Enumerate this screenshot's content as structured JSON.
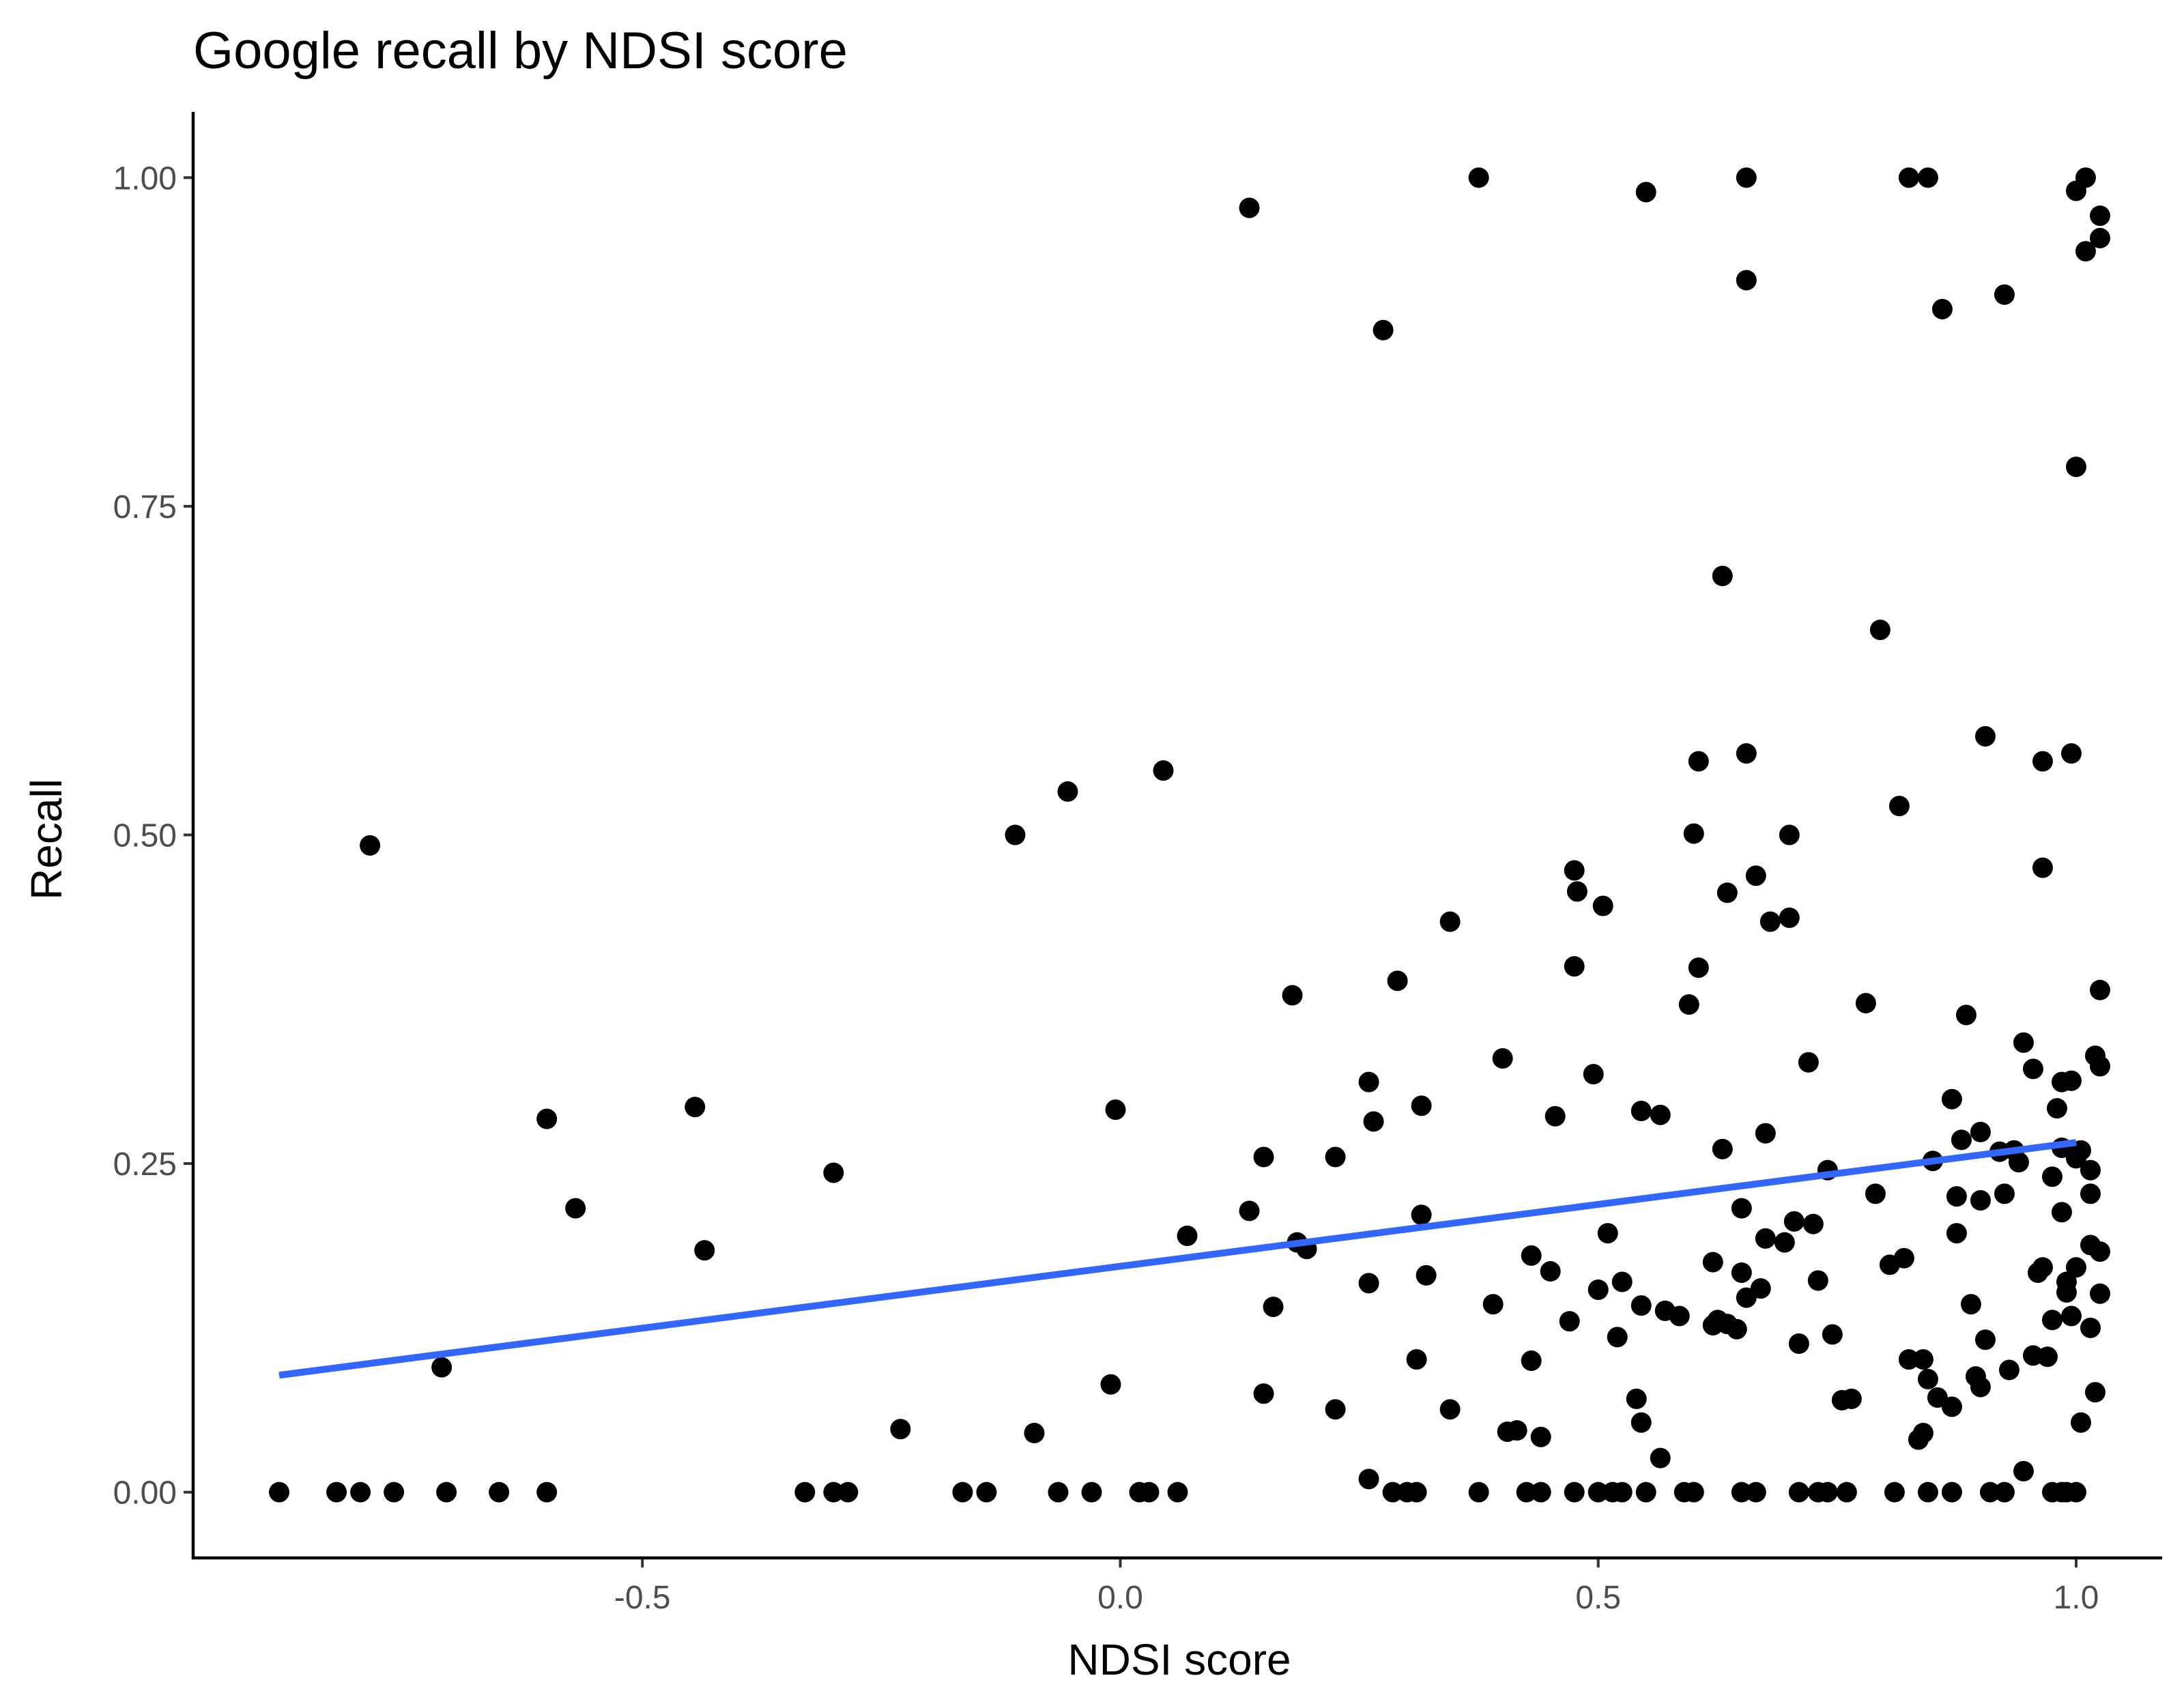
{
  "chart_data": {
    "type": "scatter",
    "title": "Google recall by NDSI score",
    "xlabel": "NDSI score",
    "ylabel": "Recall",
    "xlim": [
      -0.97,
      1.09
    ],
    "ylim": [
      -0.05,
      1.05
    ],
    "xticks": [
      {
        "value": -0.5,
        "label": "-0.5"
      },
      {
        "value": 0.0,
        "label": "0.0"
      },
      {
        "value": 0.5,
        "label": "0.5"
      },
      {
        "value": 1.0,
        "label": "1.0"
      }
    ],
    "yticks": [
      {
        "value": 0.0,
        "label": "0.00"
      },
      {
        "value": 0.25,
        "label": "0.25"
      },
      {
        "value": 0.5,
        "label": "0.50"
      },
      {
        "value": 0.75,
        "label": "0.75"
      },
      {
        "value": 1.0,
        "label": "1.00"
      }
    ],
    "grid": false,
    "legend": "none",
    "point_color": "#000000",
    "trend_color": "#3366ff",
    "trend_line": {
      "x": [
        -0.88,
        1.0
      ],
      "y": [
        0.089,
        0.266
      ]
    },
    "points": [
      [
        -0.88,
        0
      ],
      [
        -0.82,
        0
      ],
      [
        -0.795,
        0
      ],
      [
        -0.76,
        0
      ],
      [
        -0.705,
        0
      ],
      [
        -0.65,
        0
      ],
      [
        -0.6,
        0
      ],
      [
        -0.33,
        0
      ],
      [
        -0.3,
        0
      ],
      [
        -0.285,
        0
      ],
      [
        -0.165,
        0
      ],
      [
        -0.14,
        0
      ],
      [
        -0.065,
        0
      ],
      [
        -0.03,
        0
      ],
      [
        0.02,
        0
      ],
      [
        0.03,
        0
      ],
      [
        0.06,
        0
      ],
      [
        0.285,
        0
      ],
      [
        0.3,
        0
      ],
      [
        0.31,
        0
      ],
      [
        0.375,
        0
      ],
      [
        0.425,
        0
      ],
      [
        0.44,
        0
      ],
      [
        0.475,
        0
      ],
      [
        0.5,
        0
      ],
      [
        0.515,
        0
      ],
      [
        0.525,
        0
      ],
      [
        0.55,
        0
      ],
      [
        0.59,
        0
      ],
      [
        0.6,
        0
      ],
      [
        0.65,
        0
      ],
      [
        0.665,
        0
      ],
      [
        0.71,
        0
      ],
      [
        0.73,
        0
      ],
      [
        0.74,
        0
      ],
      [
        0.76,
        0
      ],
      [
        0.81,
        0
      ],
      [
        0.845,
        0
      ],
      [
        0.87,
        0
      ],
      [
        0.91,
        0
      ],
      [
        0.925,
        0
      ],
      [
        0.975,
        0
      ],
      [
        0.985,
        0
      ],
      [
        0.99,
        0
      ],
      [
        1.0,
        0
      ],
      [
        -0.785,
        0.492
      ],
      [
        -0.71,
        0.095
      ],
      [
        -0.6,
        0.284
      ],
      [
        -0.57,
        0.216
      ],
      [
        -0.445,
        0.293
      ],
      [
        -0.435,
        0.184
      ],
      [
        -0.3,
        0.243
      ],
      [
        -0.23,
        0.048
      ],
      [
        -0.11,
        0.5
      ],
      [
        -0.09,
        0.045
      ],
      [
        -0.055,
        0.533
      ],
      [
        -0.01,
        0.082
      ],
      [
        -0.005,
        0.291
      ],
      [
        0.045,
        0.549
      ],
      [
        0.07,
        0.195
      ],
      [
        0.135,
        0.977
      ],
      [
        0.135,
        0.214
      ],
      [
        0.15,
        0.075
      ],
      [
        0.15,
        0.255
      ],
      [
        0.16,
        0.141
      ],
      [
        0.18,
        0.378
      ],
      [
        0.185,
        0.19
      ],
      [
        0.195,
        0.185
      ],
      [
        0.225,
        0.255
      ],
      [
        0.225,
        0.063
      ],
      [
        0.26,
        0.312
      ],
      [
        0.26,
        0.01
      ],
      [
        0.26,
        0.159
      ],
      [
        0.265,
        0.282
      ],
      [
        0.275,
        0.884
      ],
      [
        0.29,
        0.389
      ],
      [
        0.31,
        0.101
      ],
      [
        0.315,
        0.294
      ],
      [
        0.315,
        0.211
      ],
      [
        0.32,
        0.165
      ],
      [
        0.345,
        0.434
      ],
      [
        0.345,
        0.063
      ],
      [
        0.375,
        1.0
      ],
      [
        0.39,
        0.143
      ],
      [
        0.4,
        0.33
      ],
      [
        0.405,
        0.046
      ],
      [
        0.415,
        0.047
      ],
      [
        0.43,
        0.18
      ],
      [
        0.43,
        0.1
      ],
      [
        0.44,
        0.042
      ],
      [
        0.45,
        0.168
      ],
      [
        0.455,
        0.286
      ],
      [
        0.47,
        0.13
      ],
      [
        0.475,
        0.473
      ],
      [
        0.475,
        0.4
      ],
      [
        0.478,
        0.457
      ],
      [
        0.495,
        0.318
      ],
      [
        0.5,
        0.154
      ],
      [
        0.505,
        0.446
      ],
      [
        0.51,
        0.197
      ],
      [
        0.52,
        0.118
      ],
      [
        0.525,
        0.16
      ],
      [
        0.54,
        0.071
      ],
      [
        0.545,
        0.29
      ],
      [
        0.545,
        0.053
      ],
      [
        0.545,
        0.142
      ],
      [
        0.55,
        0.989
      ],
      [
        0.565,
        0.026
      ],
      [
        0.565,
        0.287
      ],
      [
        0.57,
        0.138
      ],
      [
        0.585,
        0.134
      ],
      [
        0.595,
        0.371
      ],
      [
        0.6,
        0.501
      ],
      [
        0.605,
        0.399
      ],
      [
        0.605,
        0.556
      ],
      [
        0.62,
        0.175
      ],
      [
        0.62,
        0.127
      ],
      [
        0.625,
        0.131
      ],
      [
        0.63,
        0.261
      ],
      [
        0.63,
        0.697
      ],
      [
        0.635,
        0.456
      ],
      [
        0.635,
        0.128
      ],
      [
        0.645,
        0.124
      ],
      [
        0.65,
        0.216
      ],
      [
        0.65,
        0.167
      ],
      [
        0.655,
        1.0
      ],
      [
        0.655,
        0.922
      ],
      [
        0.655,
        0.562
      ],
      [
        0.655,
        0.148
      ],
      [
        0.665,
        0.469
      ],
      [
        0.67,
        0.155
      ],
      [
        0.675,
        0.193
      ],
      [
        0.675,
        0.273
      ],
      [
        0.68,
        0.434
      ],
      [
        0.695,
        0.19
      ],
      [
        0.7,
        0.5
      ],
      [
        0.7,
        0.437
      ],
      [
        0.705,
        0.206
      ],
      [
        0.71,
        0.113
      ],
      [
        0.72,
        0.327
      ],
      [
        0.725,
        0.204
      ],
      [
        0.73,
        0.161
      ],
      [
        0.74,
        0.245
      ],
      [
        0.745,
        0.12
      ],
      [
        0.755,
        0.07
      ],
      [
        0.765,
        0.071
      ],
      [
        0.78,
        0.372
      ],
      [
        0.79,
        0.227
      ],
      [
        0.795,
        0.656
      ],
      [
        0.805,
        0.173
      ],
      [
        0.815,
        0.522
      ],
      [
        0.82,
        0.178
      ],
      [
        0.825,
        0.101
      ],
      [
        0.825,
        1.0
      ],
      [
        0.835,
        0.04
      ],
      [
        0.84,
        0.101
      ],
      [
        0.84,
        0.045
      ],
      [
        0.845,
        0.086
      ],
      [
        0.845,
        1.0
      ],
      [
        0.85,
        0.252
      ],
      [
        0.855,
        0.072
      ],
      [
        0.86,
        0.9
      ],
      [
        0.87,
        0.065
      ],
      [
        0.87,
        0.299
      ],
      [
        0.875,
        0.225
      ],
      [
        0.875,
        0.197
      ],
      [
        0.88,
        0.268
      ],
      [
        0.885,
        0.363
      ],
      [
        0.89,
        0.143
      ],
      [
        0.895,
        0.088
      ],
      [
        0.9,
        0.274
      ],
      [
        0.9,
        0.222
      ],
      [
        0.9,
        0.08
      ],
      [
        0.905,
        0.575
      ],
      [
        0.905,
        0.116
      ],
      [
        0.92,
        0.259
      ],
      [
        0.925,
        0.911
      ],
      [
        0.925,
        0.227
      ],
      [
        0.93,
        0.093
      ],
      [
        0.935,
        0.26
      ],
      [
        0.94,
        0.251
      ],
      [
        0.945,
        0.342
      ],
      [
        0.945,
        0.016
      ],
      [
        0.955,
        0.104
      ],
      [
        0.955,
        0.322
      ],
      [
        0.96,
        0.167
      ],
      [
        0.965,
        0.556
      ],
      [
        0.965,
        0.475
      ],
      [
        0.965,
        0.171
      ],
      [
        0.97,
        0.103
      ],
      [
        0.975,
        0.131
      ],
      [
        0.975,
        0.24
      ],
      [
        0.98,
        0.292
      ],
      [
        0.985,
        0.312
      ],
      [
        0.985,
        0.262
      ],
      [
        0.985,
        0.213
      ],
      [
        0.99,
        0.152
      ],
      [
        0.99,
        0.16
      ],
      [
        0.995,
        0.134
      ],
      [
        0.995,
        0.562
      ],
      [
        0.995,
        0.313
      ],
      [
        1.0,
        0.78
      ],
      [
        1.0,
        0.99
      ],
      [
        1.0,
        0.254
      ],
      [
        1.0,
        0.171
      ],
      [
        1.005,
        0.053
      ],
      [
        1.005,
        0.26
      ],
      [
        1.01,
        1.0
      ],
      [
        1.01,
        0.944
      ],
      [
        1.015,
        0.188
      ],
      [
        1.015,
        0.227
      ],
      [
        1.015,
        0.245
      ],
      [
        1.015,
        0.125
      ],
      [
        1.02,
        0.332
      ],
      [
        1.02,
        0.076
      ],
      [
        1.025,
        0.183
      ],
      [
        1.025,
        0.954
      ],
      [
        1.025,
        0.971
      ],
      [
        1.025,
        0.324
      ],
      [
        1.025,
        0.382
      ],
      [
        1.025,
        0.151
      ]
    ]
  }
}
